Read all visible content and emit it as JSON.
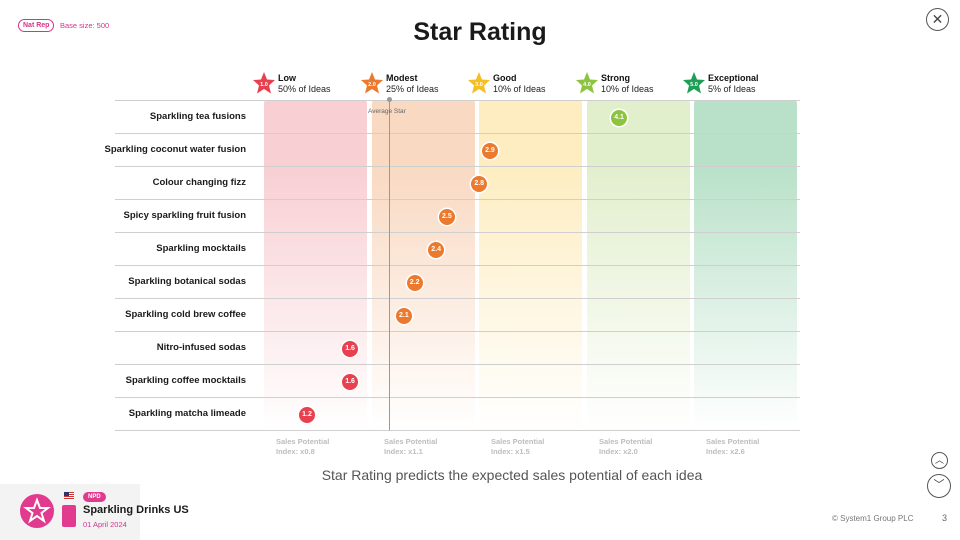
{
  "header": {
    "badge": "Nat Rep",
    "base_size": "Base size: 500",
    "title": "Star Rating",
    "close_icon": "close-icon"
  },
  "chart_data": {
    "type": "scatter",
    "title": "Star Rating",
    "bands": [
      {
        "name": "Low",
        "pct": "50% of Ideas",
        "star": "1.0",
        "index": "Sales Potential\nIndex: x0.8",
        "color": "#e8404f",
        "light": "#f8cfd3"
      },
      {
        "name": "Modest",
        "pct": "25% of Ideas",
        "star": "2.0",
        "index": "Sales Potential\nIndex: x1.1",
        "color": "#ec7a2e",
        "light": "#f9d9c2"
      },
      {
        "name": "Good",
        "pct": "10% of Ideas",
        "star": "3.0",
        "index": "Sales Potential\nIndex: x1.5",
        "color": "#f5be24",
        "light": "#fdedc1"
      },
      {
        "name": "Strong",
        "pct": "10% of Ideas",
        "star": "4.0",
        "index": "Sales Potential\nIndex: x2.0",
        "color": "#8cc43f",
        "light": "#e2efcd"
      },
      {
        "name": "Exceptional",
        "pct": "5% of Ideas",
        "star": "5.0",
        "index": "Sales Potential\nIndex: x2.6",
        "color": "#1e9e57",
        "light": "#b9e1c9"
      }
    ],
    "average_label": "Average Star",
    "average_value": 2.0,
    "xlim": [
      0.5,
      5.5
    ],
    "categories": [
      "Sparkling tea fusions",
      "Sparkling coconut water fusion",
      "Colour changing fizz",
      "Spicy sparkling fruit fusion",
      "Sparkling mocktails",
      "Sparkling botanical sodas",
      "Sparkling cold brew coffee",
      "Nitro-infused sodas",
      "Sparkling coffee mocktails",
      "Sparkling matcha limeade"
    ],
    "values": [
      4.1,
      2.9,
      2.8,
      2.5,
      2.4,
      2.2,
      2.1,
      1.6,
      1.6,
      1.2
    ],
    "value_labels": [
      "4.1",
      "2.9",
      "2.8",
      "2.5",
      "2.4",
      "2.2",
      "2.1",
      "1.6",
      "1.6",
      "1.2"
    ]
  },
  "subtitle": "Star Rating predicts the expected sales potential of each idea",
  "nav": {
    "up_icon": "chevron-up-icon",
    "down_icon": "chevron-down-icon"
  },
  "footer": {
    "npd_badge": "NPD",
    "project_title": "Sparkling Drinks US",
    "project_date": "01 April 2024",
    "copyright": "© System1 Group PLC",
    "page": "3",
    "logo_icon": "star-logo-icon",
    "flag_icon": "us-flag-icon"
  }
}
